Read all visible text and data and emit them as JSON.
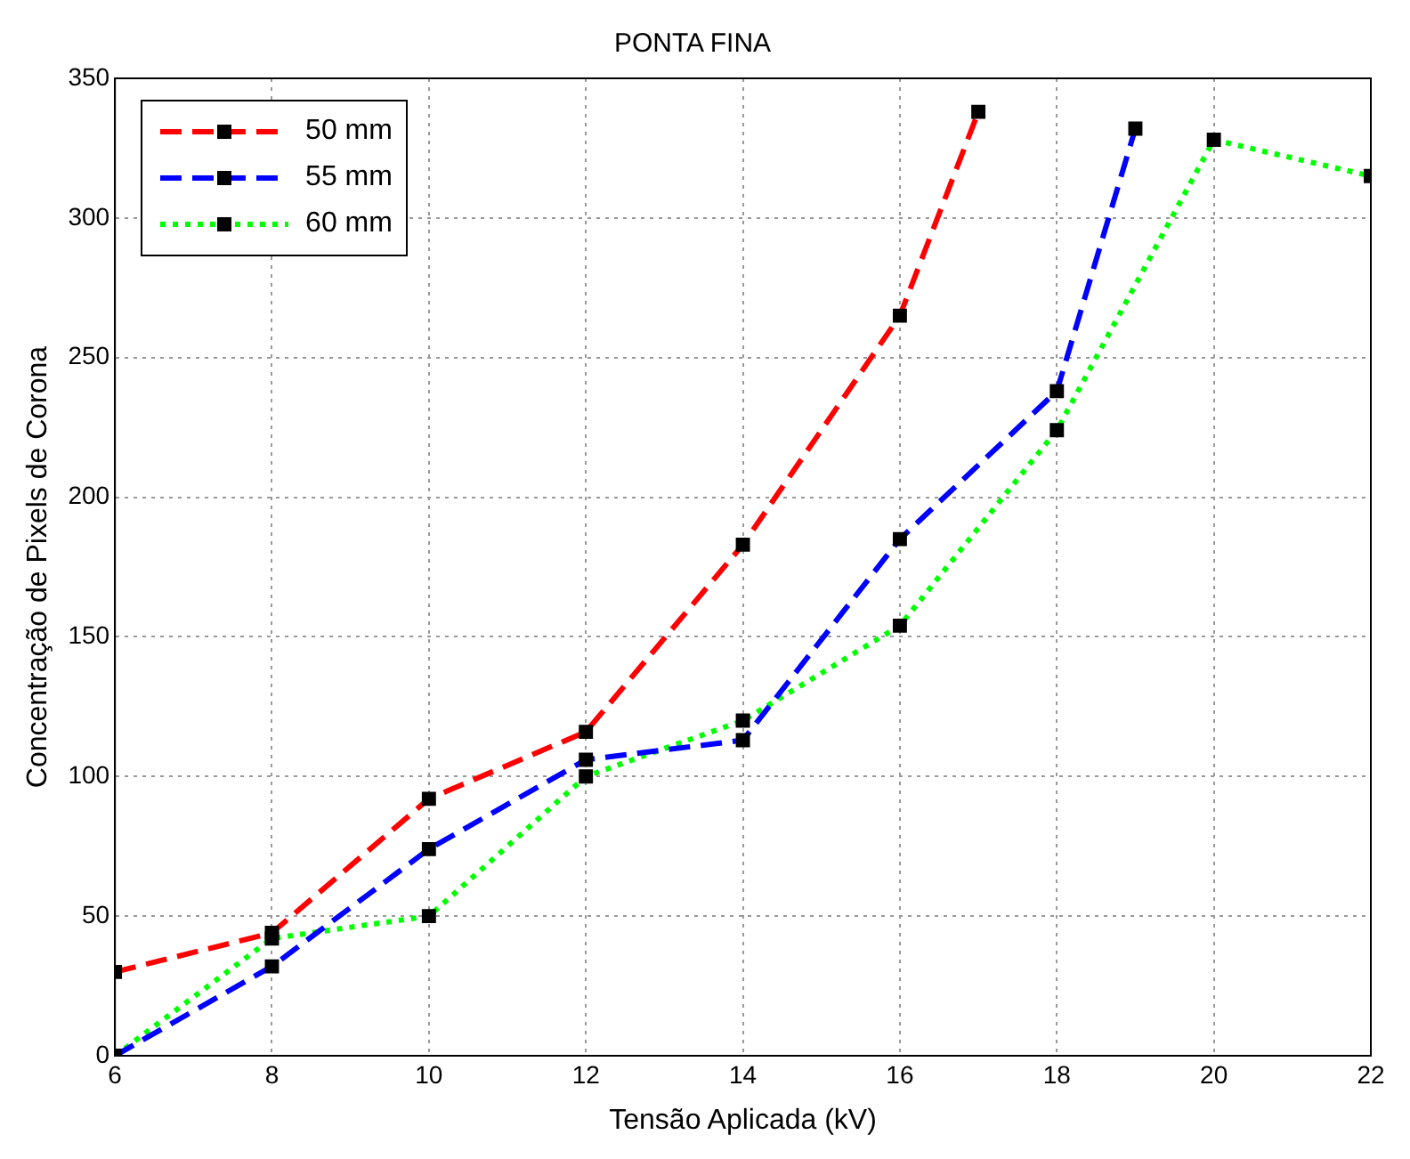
{
  "chart_data": {
    "type": "line",
    "title": "PONTA FINA",
    "xlabel": "Tensão Aplicada (kV)",
    "ylabel": "Concentração de Pixels de Corona",
    "xlim": [
      6,
      22
    ],
    "xticks": [
      6,
      8,
      10,
      12,
      14,
      16,
      18,
      20,
      22
    ],
    "ylim": [
      0,
      350
    ],
    "yticks": [
      0,
      50,
      100,
      150,
      200,
      250,
      300,
      350
    ],
    "grid": true,
    "legend": "top left",
    "marker": "square",
    "series": [
      {
        "name": "50 mm",
        "color": "#ff0000",
        "line_style": "dashed",
        "x": [
          6,
          8,
          10,
          12,
          14,
          16,
          17
        ],
        "values": [
          30,
          44,
          92,
          116,
          183,
          265,
          338
        ]
      },
      {
        "name": "55 mm",
        "color": "#0000ff",
        "line_style": "dashed",
        "x": [
          6,
          8,
          10,
          12,
          14,
          16,
          18,
          19
        ],
        "values": [
          0,
          32,
          74,
          106,
          113,
          185,
          238,
          332
        ]
      },
      {
        "name": "60 mm",
        "color": "#00ff00",
        "line_style": "dotted",
        "x": [
          6,
          8,
          10,
          12,
          14,
          16,
          18,
          20,
          22
        ],
        "values": [
          0,
          42,
          50,
          100,
          120,
          154,
          224,
          328,
          315
        ]
      }
    ]
  }
}
